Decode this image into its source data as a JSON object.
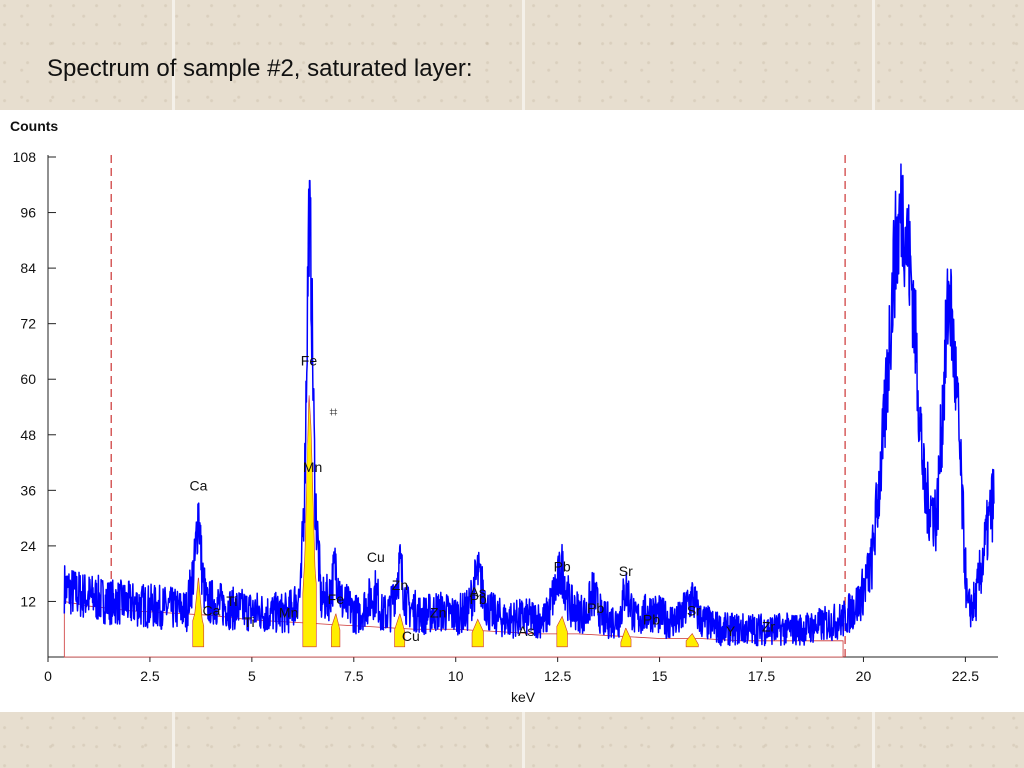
{
  "slide": {
    "title": "Spectrum of sample #2, saturated layer:"
  },
  "chart_data": {
    "type": "line",
    "title": "",
    "xlabel": "keV",
    "ylabel": "Counts",
    "xlim": [
      0,
      23.3
    ],
    "ylim": [
      0,
      108
    ],
    "x_ticks": [
      0,
      2.5,
      5,
      7.5,
      10,
      12.5,
      15,
      17.5,
      20,
      22.5
    ],
    "x_tick_labels": [
      "0",
      "2.5",
      "5",
      "7.5",
      "10",
      "12.5",
      "15",
      "17.5",
      "20",
      "22.5"
    ],
    "y_ticks": [
      12,
      24,
      36,
      48,
      60,
      72,
      84,
      96,
      108
    ],
    "y_tick_labels": [
      "12",
      "24",
      "36",
      "48",
      "60",
      "72",
      "84",
      "96",
      "108"
    ],
    "grid": false,
    "colors": {
      "spectrum": "#0000ff",
      "fill": "#ffee00",
      "marker": "#cc3333"
    },
    "roi_markers_kev": [
      1.55,
      19.55
    ],
    "background_fill": {
      "x": [
        0.4,
        1.0,
        2.0,
        3.0,
        4.0,
        5.0,
        6.0,
        7.0,
        8.0,
        9.0,
        10.0,
        11.0,
        12.0,
        13.0,
        14.0,
        15.0,
        16.0,
        17.0,
        18.0,
        19.0,
        19.5
      ],
      "y": [
        12,
        11,
        10,
        9.5,
        9,
        8,
        7.5,
        7,
        6.5,
        6,
        6,
        5.5,
        5,
        5,
        4.5,
        4,
        4,
        3.5,
        3.5,
        3.5,
        3.5
      ]
    },
    "series": [
      {
        "values": [
          [
            0.4,
            15
          ],
          [
            0.6,
            14
          ],
          [
            0.8,
            13.5
          ],
          [
            1.0,
            13
          ],
          [
            1.5,
            12
          ],
          [
            2.0,
            11.5
          ],
          [
            2.5,
            11
          ],
          [
            3.0,
            10.5
          ],
          [
            3.4,
            10
          ],
          [
            3.6,
            20
          ],
          [
            3.69,
            33
          ],
          [
            3.78,
            18
          ],
          [
            3.9,
            11
          ],
          [
            4.0,
            12
          ],
          [
            4.5,
            10.5
          ],
          [
            4.95,
            10
          ],
          [
            5.4,
            9.5
          ],
          [
            5.9,
            9.5
          ],
          [
            6.2,
            14
          ],
          [
            6.3,
            40
          ],
          [
            6.4,
            97
          ],
          [
            6.45,
            85
          ],
          [
            6.55,
            35
          ],
          [
            6.7,
            12
          ],
          [
            6.9,
            13
          ],
          [
            7.06,
            20
          ],
          [
            7.2,
            12
          ],
          [
            7.6,
            9
          ],
          [
            8.04,
            14
          ],
          [
            8.2,
            9
          ],
          [
            8.4,
            10
          ],
          [
            8.63,
            20
          ],
          [
            8.8,
            11
          ],
          [
            9.2,
            9
          ],
          [
            9.57,
            10
          ],
          [
            10.0,
            9
          ],
          [
            10.3,
            10
          ],
          [
            10.54,
            18
          ],
          [
            10.8,
            10
          ],
          [
            11.2,
            8
          ],
          [
            11.7,
            8.5
          ],
          [
            12.2,
            8
          ],
          [
            12.61,
            19
          ],
          [
            12.8,
            11
          ],
          [
            13.2,
            9
          ],
          [
            13.36,
            14
          ],
          [
            13.6,
            8
          ],
          [
            14.0,
            8
          ],
          [
            14.17,
            15
          ],
          [
            14.4,
            8
          ],
          [
            14.8,
            10
          ],
          [
            15.2,
            8
          ],
          [
            15.5,
            8
          ],
          [
            15.8,
            13
          ],
          [
            16.0,
            8
          ],
          [
            16.5,
            6
          ],
          [
            17.0,
            6
          ],
          [
            17.5,
            6
          ],
          [
            18.0,
            6
          ],
          [
            18.5,
            6
          ],
          [
            19.0,
            7
          ],
          [
            19.5,
            8
          ],
          [
            19.9,
            12
          ],
          [
            20.2,
            20
          ],
          [
            20.5,
            48
          ],
          [
            20.75,
            85
          ],
          [
            20.95,
            98
          ],
          [
            21.2,
            80
          ],
          [
            21.5,
            35
          ],
          [
            21.8,
            30
          ],
          [
            22.1,
            80
          ],
          [
            22.3,
            55
          ],
          [
            22.55,
            10
          ],
          [
            22.75,
            12
          ],
          [
            23.0,
            25
          ],
          [
            23.2,
            35
          ]
        ]
      }
    ],
    "peak_labels": [
      {
        "text": "Ca",
        "x": 3.69,
        "y": 36
      },
      {
        "text": "Fe",
        "x": 6.4,
        "y": 63
      },
      {
        "text": "Mn",
        "x": 6.49,
        "y": 40
      },
      {
        "text": "Cu",
        "x": 8.04,
        "y": 20.5
      },
      {
        "text": "Zn",
        "x": 8.63,
        "y": 14.5
      },
      {
        "text": "As",
        "x": 10.54,
        "y": 13
      },
      {
        "text": "Pb",
        "x": 10.55,
        "y": 11.5
      },
      {
        "text": "Pb",
        "x": 12.61,
        "y": 18.5
      },
      {
        "text": "Sr",
        "x": 14.17,
        "y": 17.5
      },
      {
        "text": "Ca",
        "x": 4.01,
        "y": 9
      },
      {
        "text": "Ti",
        "x": 4.51,
        "y": 11
      },
      {
        "text": "Ti",
        "x": 4.93,
        "y": 6.5
      },
      {
        "text": "Mn",
        "x": 5.9,
        "y": 8.5
      },
      {
        "text": "Fe",
        "x": 7.06,
        "y": 11.5
      },
      {
        "text": "Cu",
        "x": 8.9,
        "y": 3.5
      },
      {
        "text": "Zn",
        "x": 9.57,
        "y": 8.5
      },
      {
        "text": "As",
        "x": 11.73,
        "y": 4.5
      },
      {
        "text": "Pb",
        "x": 13.43,
        "y": 9.5
      },
      {
        "text": "Pb",
        "x": 14.8,
        "y": 7
      },
      {
        "text": "Sr",
        "x": 15.84,
        "y": 9
      },
      {
        "text": "Y",
        "x": 16.74,
        "y": 4.5
      },
      {
        "text": "Zr",
        "x": 17.67,
        "y": 5.5
      }
    ]
  }
}
